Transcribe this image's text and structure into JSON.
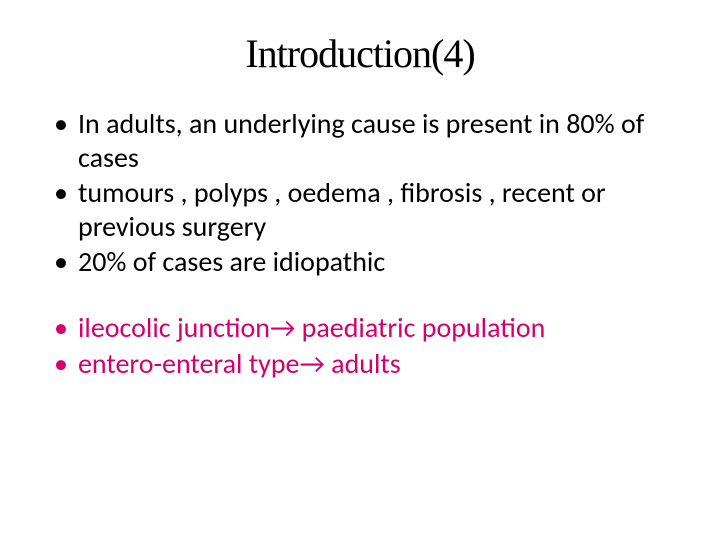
{
  "slide": {
    "title": "Introduction(4)",
    "title_color": "#000000",
    "title_fontsize": 40,
    "title_font": "Times New Roman",
    "body_fontsize": 28,
    "colors": {
      "black": "#000000",
      "pink": "#d6006c",
      "background": "#ffffff"
    },
    "bullets": [
      {
        "text": "In adults, an underlying cause is present in 80% of cases",
        "color": "black"
      },
      {
        "text": "tumours , polyps , oedema , fibrosis , recent or previous surgery",
        "color": "black"
      },
      {
        "text": "20% of cases are idiopathic",
        "color": "black"
      },
      {
        "text": "ileocolic junction→ paediatric population",
        "color": "pink",
        "gap": true
      },
      {
        "text": "entero-enteral type→ adults",
        "color": "pink"
      }
    ]
  }
}
